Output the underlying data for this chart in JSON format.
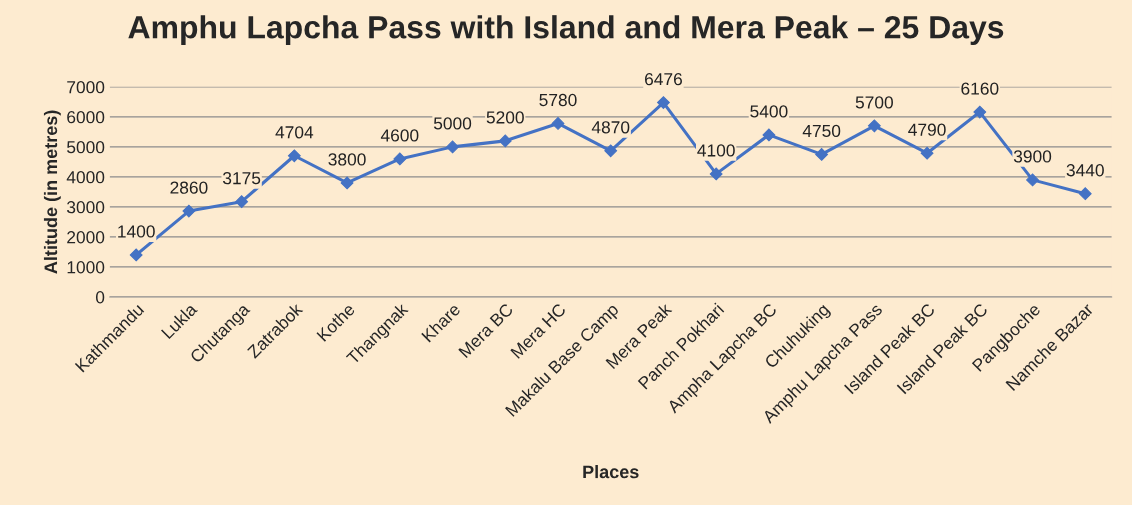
{
  "chart_data": {
    "type": "line",
    "title": "Amphu Lapcha Pass with Island and Mera Peak – 25 Days",
    "xlabel": "Places",
    "ylabel": "Altitude (in metres)",
    "categories": [
      "Kathmandu",
      "Lukla",
      "Chutanga",
      "Zatrabok",
      "Kothe",
      "Thangnak",
      "Khare",
      "Mera BC",
      "Mera HC",
      "Makalu Base Camp",
      "Mera Peak",
      "Panch Pokhari",
      "Ampha Lapcha BC",
      "Chuhuking",
      "Amphu Lapcha Pass",
      "Island Peak BC",
      "Island Peak BC",
      "Pangboche",
      "Namche Bazar"
    ],
    "series": [
      {
        "color": "#4472c4",
        "values": [
          1400,
          2860,
          3175,
          4704,
          3800,
          4600,
          5000,
          5200,
          5780,
          4870,
          6476,
          4100,
          5400,
          4750,
          5700,
          4790,
          6160,
          3900,
          3440
        ]
      }
    ],
    "ylim": [
      0,
      7000
    ],
    "yticks": [
      0,
      1000,
      2000,
      3000,
      4000,
      5000,
      6000,
      7000
    ],
    "grid": "y",
    "marker": "diamond",
    "line_style": "solid",
    "data_labels": true,
    "legend": false
  }
}
